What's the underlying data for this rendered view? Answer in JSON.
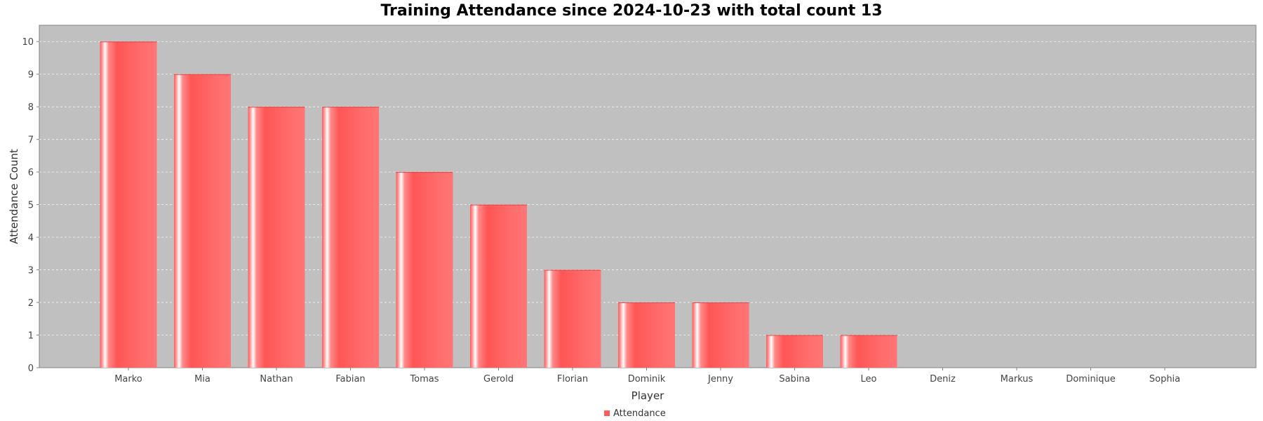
{
  "chart_data": {
    "type": "bar",
    "title": "Training Attendance since 2024-10-23 with total count 13",
    "xlabel": "Player",
    "ylabel": "Attendance Count",
    "categories": [
      "Marko",
      "Mia",
      "Nathan",
      "Fabian",
      "Tomas",
      "Gerold",
      "Florian",
      "Dominik",
      "Jenny",
      "Sabina",
      "Leo",
      "Deniz",
      "Markus",
      "Dominique",
      "Sophia"
    ],
    "series": [
      {
        "name": "Attendance",
        "values": [
          10,
          9,
          8,
          8,
          6,
          5,
          3,
          2,
          2,
          1,
          1,
          0,
          0,
          0,
          0
        ]
      }
    ],
    "ylim": [
      0,
      10.5
    ],
    "yticks": [
      0,
      1,
      2,
      3,
      4,
      5,
      6,
      7,
      8,
      9,
      10
    ],
    "grid": true,
    "legend_position": "bottom-center",
    "colors": {
      "bar": "#ff5a5a",
      "bar_light": "#ff7a7a",
      "bar_highlight": "#ffffff",
      "plot_background": "#c0c0c0",
      "gridline": "#ffffff",
      "axis": "#808080"
    }
  }
}
